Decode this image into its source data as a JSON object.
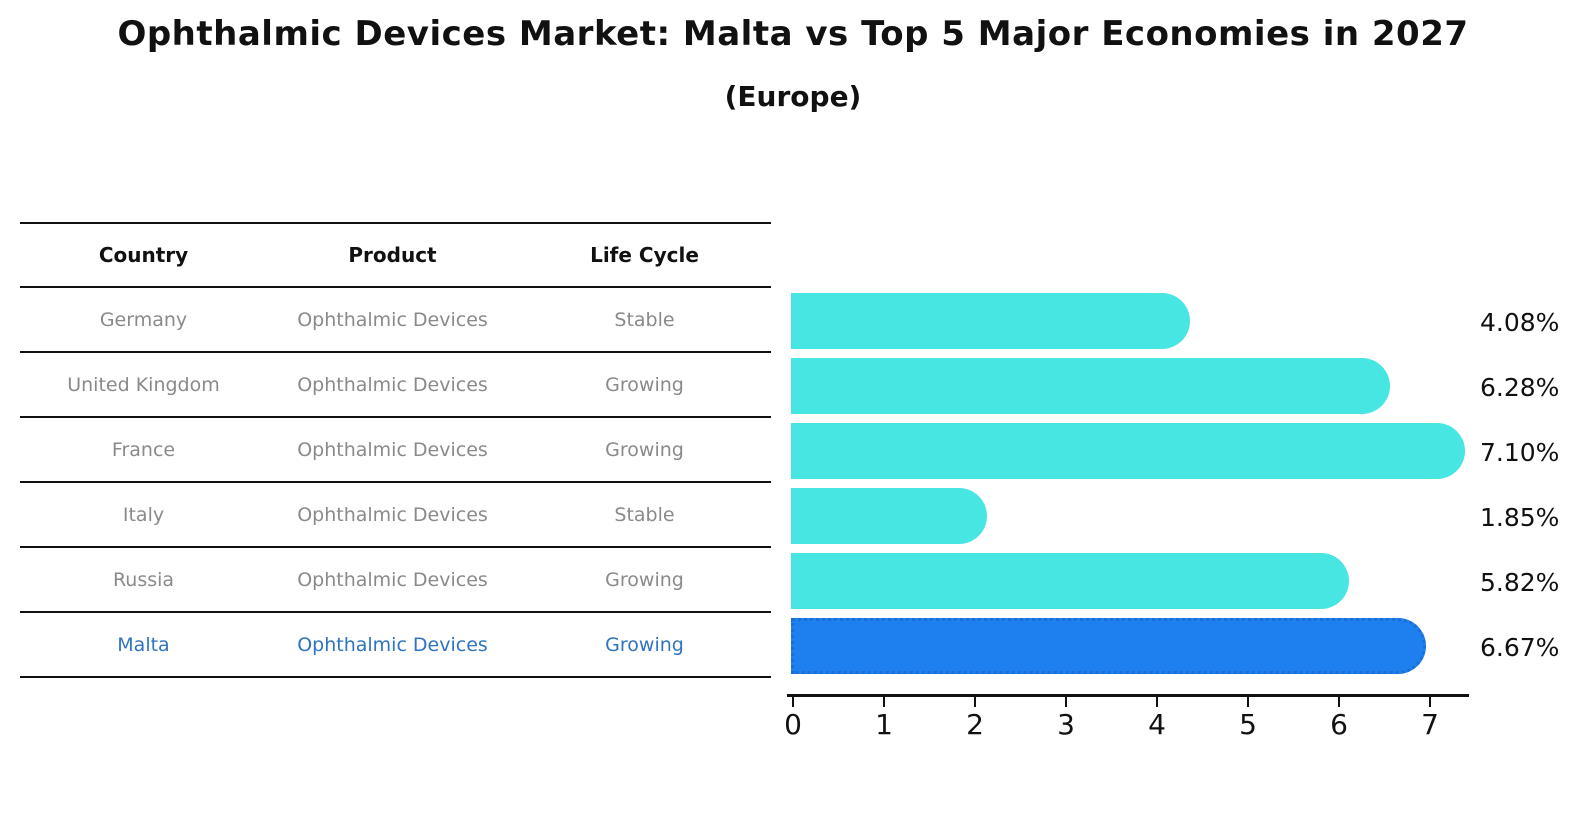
{
  "title": "Ophthalmic Devices Market: Malta vs Top 5 Major Economies in 2027",
  "subtitle": "(Europe)",
  "colors": {
    "bar_fill": "#47e6e2",
    "highlight_bar_fill": "#1e80ee",
    "highlight_bar_border": "#1a6fd4",
    "highlight_text": "#2f74c0",
    "row_text": "#8a8a8a",
    "header_text": "#111111",
    "axis_line": "#111111"
  },
  "table": {
    "headers": [
      "Country",
      "Product",
      "Life Cycle"
    ],
    "rows": [
      {
        "country": "Germany",
        "product": "Ophthalmic Devices",
        "life_cycle": "Stable",
        "highlight": false
      },
      {
        "country": "United Kingdom",
        "product": "Ophthalmic Devices",
        "life_cycle": "Growing",
        "highlight": false
      },
      {
        "country": "France",
        "product": "Ophthalmic Devices",
        "life_cycle": "Growing",
        "highlight": false
      },
      {
        "country": "Italy",
        "product": "Ophthalmic Devices",
        "life_cycle": "Stable",
        "highlight": false
      },
      {
        "country": "Russia",
        "product": "Ophthalmic Devices",
        "life_cycle": "Growing",
        "highlight": false
      },
      {
        "country": "Malta",
        "product": "Ophthalmic Devices",
        "life_cycle": "Growing",
        "highlight": true
      }
    ]
  },
  "chart_data": {
    "type": "bar",
    "orientation": "horizontal",
    "title": "Ophthalmic Devices Market: Malta vs Top 5 Major Economies in 2027 (Europe)",
    "categories": [
      "Germany",
      "United Kingdom",
      "France",
      "Italy",
      "Russia",
      "Malta"
    ],
    "values": [
      4.08,
      6.28,
      7.1,
      1.85,
      5.82,
      6.67
    ],
    "value_labels": [
      "4.08%",
      "6.28%",
      "7.10%",
      "1.85%",
      "5.82%",
      "6.67%"
    ],
    "highlight_index": 5,
    "xlabel": "",
    "ylabel": "",
    "xticks": [
      0,
      1,
      2,
      3,
      4,
      5,
      6,
      7
    ],
    "xlim": [
      0,
      7.45
    ],
    "grid": false,
    "legend": false,
    "bar_style": "rounded-right-cap, highlight bar has dotted border"
  }
}
